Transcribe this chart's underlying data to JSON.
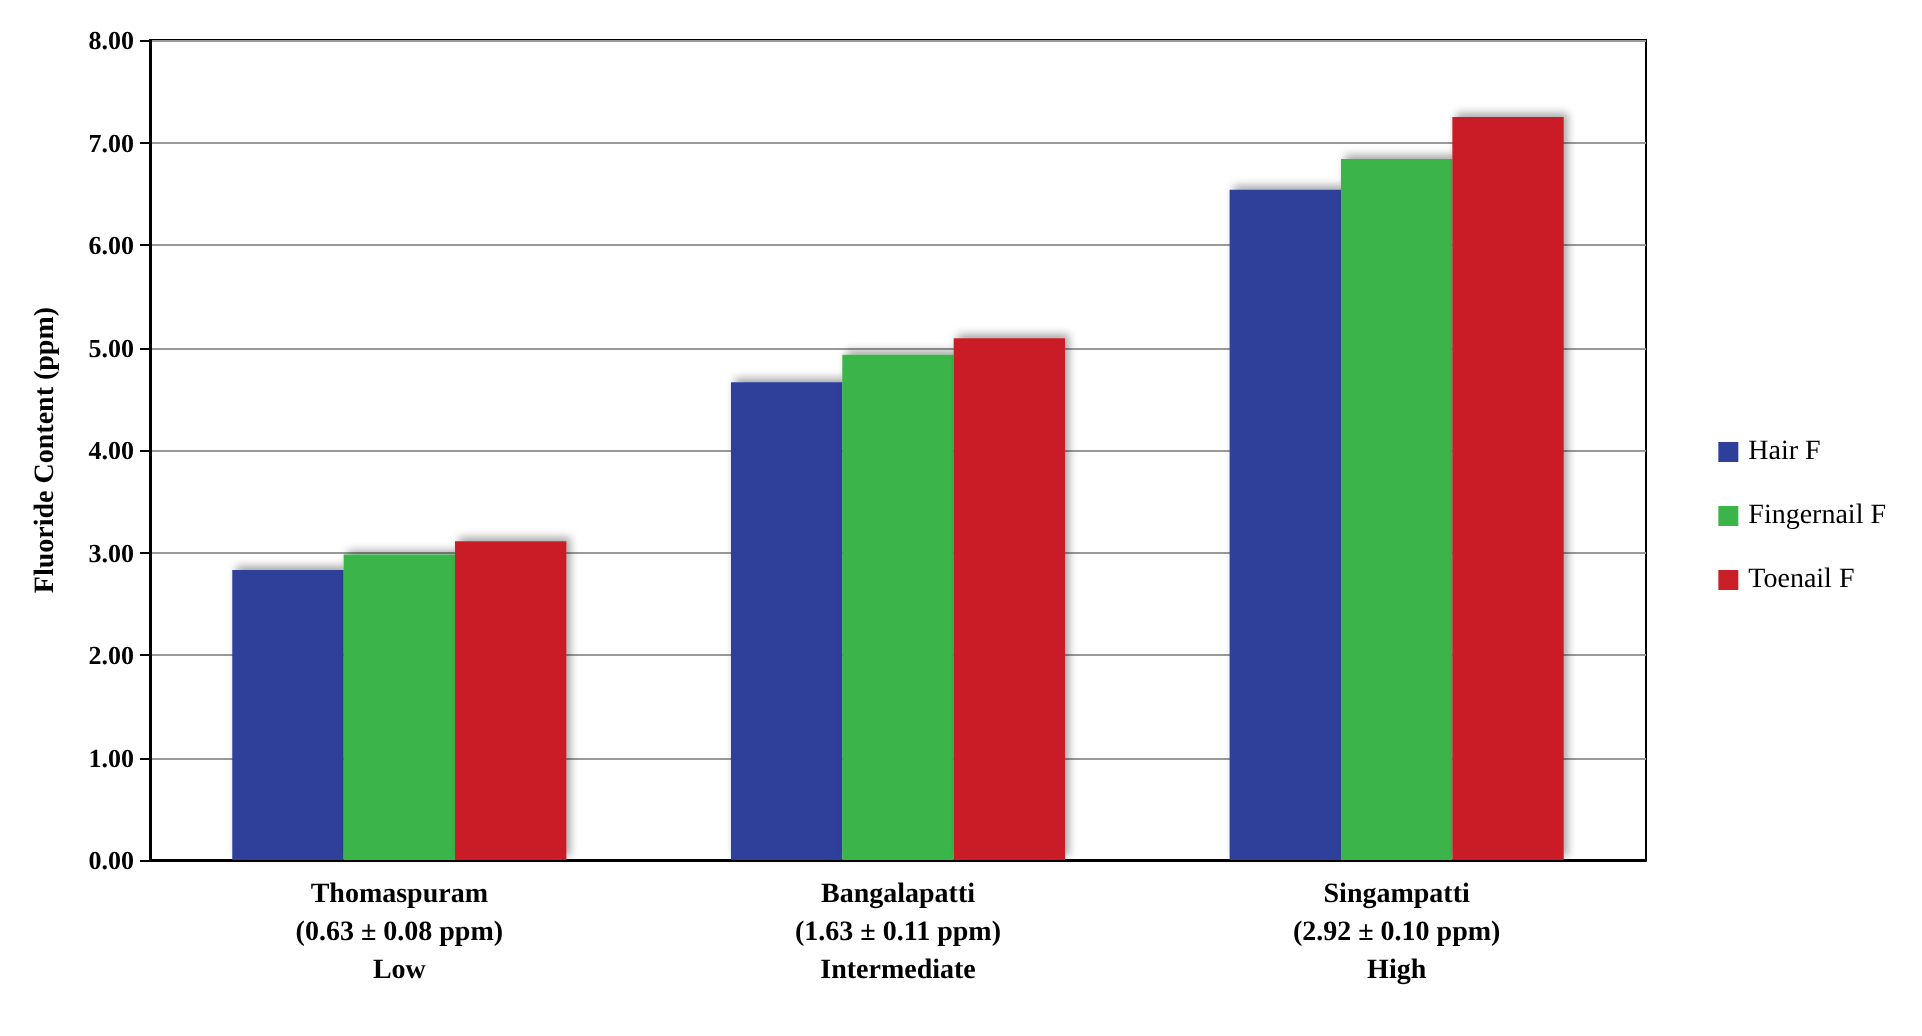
{
  "chart_data": {
    "type": "bar",
    "ylabel": "Fluoride Content (ppm)",
    "categories": [
      "Thomaspuram\n(0.63 ± 0.08 ppm)\nLow",
      "Bangalapatti\n(1.63 ± 0.11 ppm)\nIntermediate",
      "Singampatti\n(2.92 ± 0.10 ppm)\nHigh"
    ],
    "series": [
      {
        "name": "Hair F",
        "color": "#2e3f9a",
        "values": [
          2.83,
          4.66,
          6.54
        ]
      },
      {
        "name": "Fingernail F",
        "color": "#3bb54a",
        "values": [
          2.98,
          4.93,
          6.84
        ]
      },
      {
        "name": "Toenail F",
        "color": "#c91f26",
        "values": [
          3.11,
          5.09,
          7.25
        ]
      }
    ],
    "ylim": [
      0,
      8
    ],
    "yticks": [
      {
        "value": 0,
        "label": "0.00"
      },
      {
        "value": 1,
        "label": "1.00"
      },
      {
        "value": 2,
        "label": "2.00"
      },
      {
        "value": 3,
        "label": "3.00"
      },
      {
        "value": 4,
        "label": "4.00"
      },
      {
        "value": 5,
        "label": "5.00"
      },
      {
        "value": 6,
        "label": "6.00"
      },
      {
        "value": 7,
        "label": "7.00"
      },
      {
        "value": 8,
        "label": "8.00"
      }
    ],
    "grid": "y",
    "legend": "right"
  }
}
